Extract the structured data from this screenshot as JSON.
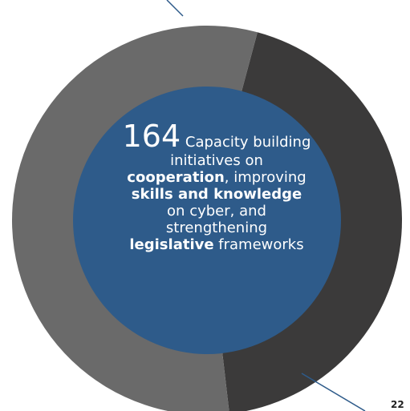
{
  "chart_data": {
    "type": "pie",
    "title": "",
    "slices": [
      {
        "label": "",
        "value": 44,
        "color": "#3b3a3a"
      },
      {
        "label": "",
        "value": 56,
        "color": "#6a6a6a"
      }
    ],
    "center_color": "#2e5b8a",
    "center_text": {
      "number": "164",
      "lead": "Capacity building",
      "line2": "initiatives on",
      "bold1": "cooperation",
      "after_bold1": ", improving",
      "bold2": "skills and knowledge",
      "line5": "on cyber, and",
      "line6": "strengthening",
      "bold3": "legislative",
      "after_bold3": " frameworks"
    }
  },
  "page_number": "22"
}
